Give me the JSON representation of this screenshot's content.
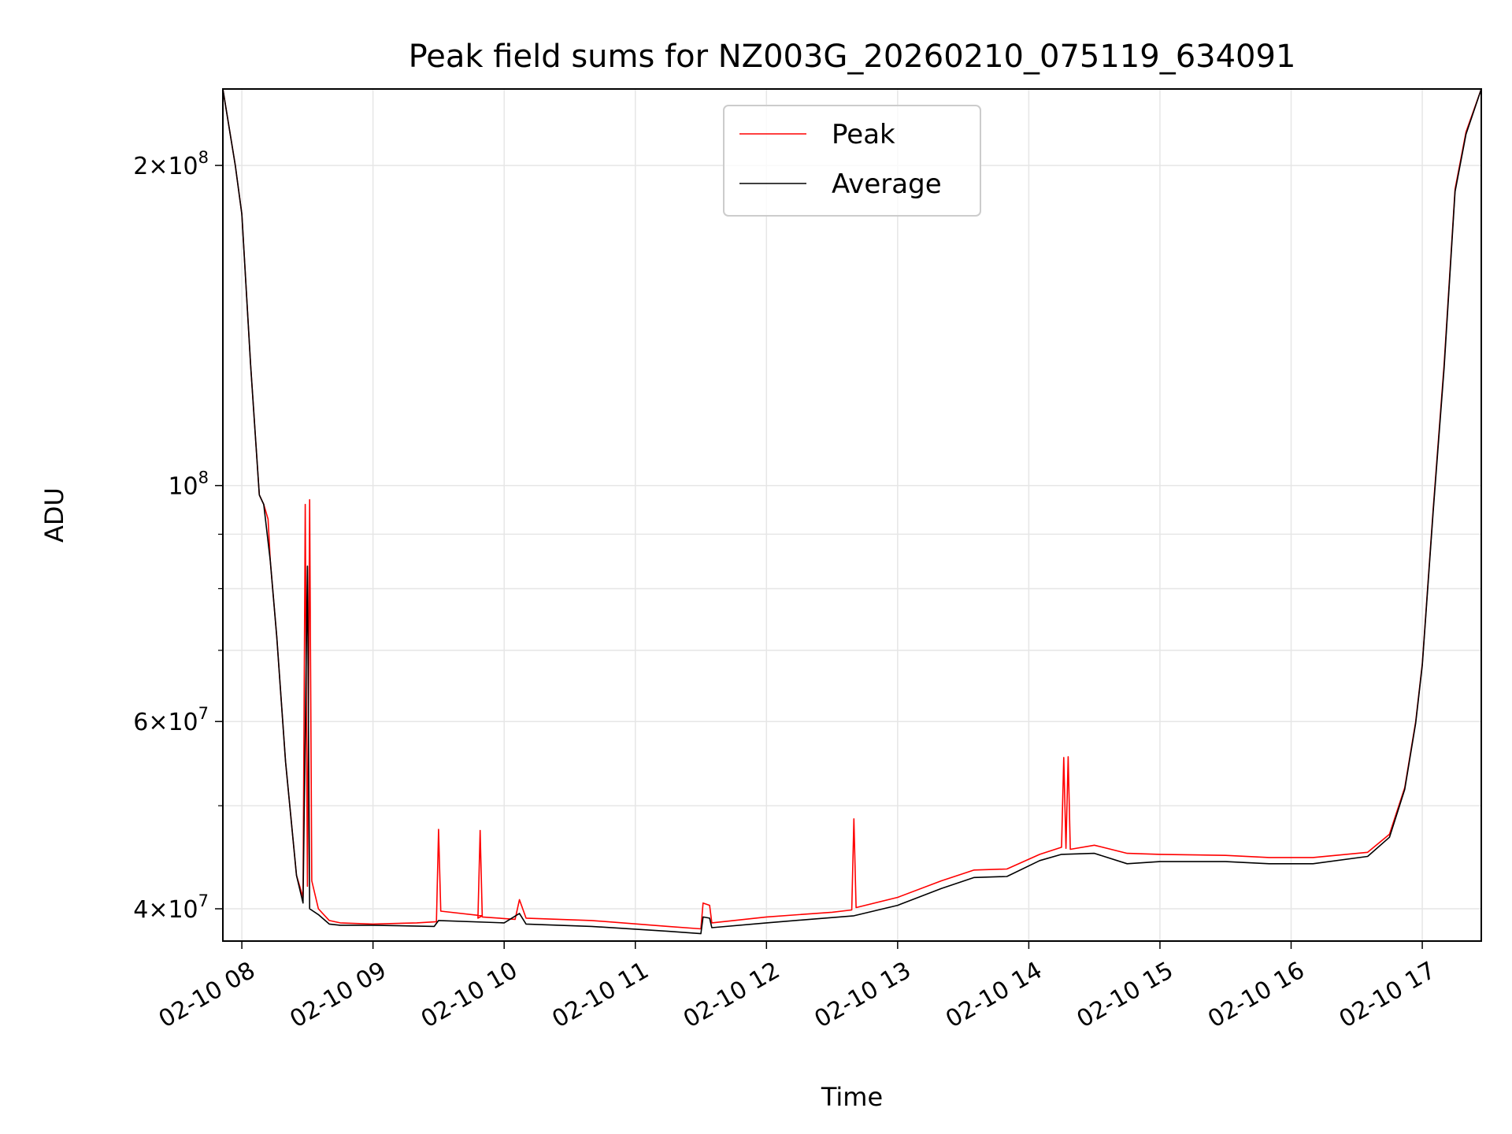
{
  "chart_data": {
    "type": "line",
    "title": "Peak field sums for NZ003G_20260210_075119_634091",
    "xlabel": "Time",
    "ylabel": "ADU",
    "y_scale": "log",
    "ylim": [
      37300000,
      236000000
    ],
    "xlim": [
      "02-10 07:51:19",
      "02-10 17:27:00"
    ],
    "grid": true,
    "legend_position": "upper center",
    "x_ticks": [
      "02-10 08",
      "02-10 09",
      "02-10 10",
      "02-10 11",
      "02-10 12",
      "02-10 13",
      "02-10 14",
      "02-10 15",
      "02-10 16",
      "02-10 17"
    ],
    "y_major_ticks": [
      {
        "value": 40000000,
        "mantissa": "4",
        "exponent": "7"
      },
      {
        "value": 60000000,
        "mantissa": "6",
        "exponent": "7"
      },
      {
        "value": 100000000,
        "mantissa": "",
        "exponent": "8"
      },
      {
        "value": 200000000,
        "mantissa": "2",
        "exponent": "8"
      }
    ],
    "y_minor_ticks": [
      50000000,
      70000000,
      80000000,
      90000000
    ],
    "series": [
      {
        "name": "Peak",
        "color": "#ff0000",
        "points": [
          [
            "02-10 07:51:19",
            236000000
          ],
          [
            "02-10 07:57",
            200000000
          ],
          [
            "02-10 08:00",
            180000000
          ],
          [
            "02-10 08:04",
            130000000
          ],
          [
            "02-10 08:08",
            98000000
          ],
          [
            "02-10 08:10",
            96000000
          ],
          [
            "02-10 08:12",
            93000000
          ],
          [
            "02-10 08:13",
            85000000
          ],
          [
            "02-10 08:16",
            72000000
          ],
          [
            "02-10 08:20",
            55000000
          ],
          [
            "02-10 08:25",
            43000000
          ],
          [
            "02-10 08:28",
            41000000
          ],
          [
            "02-10 08:29",
            96000000
          ],
          [
            "02-10 08:30",
            42000000
          ],
          [
            "02-10 08:31",
            97000000
          ],
          [
            "02-10 08:32",
            42500000
          ],
          [
            "02-10 08:35",
            40000000
          ],
          [
            "02-10 08:40",
            39000000
          ],
          [
            "02-10 08:45",
            38800000
          ],
          [
            "02-10 09:00",
            38700000
          ],
          [
            "02-10 09:20",
            38800000
          ],
          [
            "02-10 09:29",
            38900000
          ],
          [
            "02-10 09:30",
            47500000
          ],
          [
            "02-10 09:31",
            39800000
          ],
          [
            "02-10 09:50",
            39400000
          ],
          [
            "02-10 09:48",
            39200000
          ],
          [
            "02-10 09:49",
            47400000
          ],
          [
            "02-10 09:50",
            39300000
          ],
          [
            "02-10 10:05",
            39100000
          ],
          [
            "02-10 10:07",
            40800000
          ],
          [
            "02-10 10:10",
            39200000
          ],
          [
            "02-10 10:40",
            39000000
          ],
          [
            "02-10 11:15",
            38500000
          ],
          [
            "02-10 11:30",
            38300000
          ],
          [
            "02-10 11:31",
            40500000
          ],
          [
            "02-10 11:34",
            40300000
          ],
          [
            "02-10 11:35",
            38800000
          ],
          [
            "02-10 12:00",
            39300000
          ],
          [
            "02-10 12:30",
            39700000
          ],
          [
            "02-10 12:39",
            39900000
          ],
          [
            "02-10 12:40",
            48600000
          ],
          [
            "02-10 12:41",
            40100000
          ],
          [
            "02-10 13:00",
            41000000
          ],
          [
            "02-10 13:20",
            42500000
          ],
          [
            "02-10 13:35",
            43500000
          ],
          [
            "02-10 13:50",
            43600000
          ],
          [
            "02-10 14:05",
            45000000
          ],
          [
            "02-10 14:15",
            45700000
          ],
          [
            "02-10 14:16",
            55500000
          ],
          [
            "02-10 14:17",
            45600000
          ],
          [
            "02-10 14:18",
            55600000
          ],
          [
            "02-10 14:19",
            45500000
          ],
          [
            "02-10 14:30",
            45900000
          ],
          [
            "02-10 14:45",
            45100000
          ],
          [
            "02-10 15:00",
            45000000
          ],
          [
            "02-10 15:30",
            44900000
          ],
          [
            "02-10 15:50",
            44700000
          ],
          [
            "02-10 16:10",
            44700000
          ],
          [
            "02-10 16:35",
            45200000
          ],
          [
            "02-10 16:45",
            47000000
          ],
          [
            "02-10 16:52",
            52000000
          ],
          [
            "02-10 16:57",
            60000000
          ],
          [
            "02-10 17:00",
            68000000
          ],
          [
            "02-10 17:05",
            95000000
          ],
          [
            "02-10 17:10",
            130000000
          ],
          [
            "02-10 17:15",
            190000000
          ],
          [
            "02-10 17:20",
            215000000
          ],
          [
            "02-10 17:27",
            236000000
          ]
        ]
      },
      {
        "name": "Average",
        "color": "#000000",
        "points": [
          [
            "02-10 07:51:19",
            236000000
          ],
          [
            "02-10 07:57",
            200000000
          ],
          [
            "02-10 08:00",
            180000000
          ],
          [
            "02-10 08:04",
            130000000
          ],
          [
            "02-10 08:08",
            98000000
          ],
          [
            "02-10 08:10",
            96000000
          ],
          [
            "02-10 08:13",
            85000000
          ],
          [
            "02-10 08:16",
            72000000
          ],
          [
            "02-10 08:20",
            55000000
          ],
          [
            "02-10 08:25",
            43000000
          ],
          [
            "02-10 08:28",
            40500000
          ],
          [
            "02-10 08:30",
            84000000
          ],
          [
            "02-10 08:31",
            40000000
          ],
          [
            "02-10 08:35",
            39500000
          ],
          [
            "02-10 08:40",
            38700000
          ],
          [
            "02-10 08:45",
            38600000
          ],
          [
            "02-10 09:00",
            38600000
          ],
          [
            "02-10 09:28",
            38500000
          ],
          [
            "02-10 09:30",
            39000000
          ],
          [
            "02-10 10:00",
            38800000
          ],
          [
            "02-10 10:07",
            39600000
          ],
          [
            "02-10 10:10",
            38700000
          ],
          [
            "02-10 10:40",
            38500000
          ],
          [
            "02-10 11:15",
            38100000
          ],
          [
            "02-10 11:30",
            37900000
          ],
          [
            "02-10 11:31",
            39300000
          ],
          [
            "02-10 11:34",
            39200000
          ],
          [
            "02-10 11:35",
            38400000
          ],
          [
            "02-10 12:00",
            38800000
          ],
          [
            "02-10 12:40",
            39400000
          ],
          [
            "02-10 13:00",
            40300000
          ],
          [
            "02-10 13:20",
            41800000
          ],
          [
            "02-10 13:35",
            42800000
          ],
          [
            "02-10 13:50",
            42900000
          ],
          [
            "02-10 14:05",
            44400000
          ],
          [
            "02-10 14:15",
            45000000
          ],
          [
            "02-10 14:30",
            45100000
          ],
          [
            "02-10 14:45",
            44100000
          ],
          [
            "02-10 15:00",
            44300000
          ],
          [
            "02-10 15:30",
            44300000
          ],
          [
            "02-10 15:50",
            44100000
          ],
          [
            "02-10 16:10",
            44100000
          ],
          [
            "02-10 16:35",
            44800000
          ],
          [
            "02-10 16:45",
            46700000
          ],
          [
            "02-10 16:52",
            51800000
          ],
          [
            "02-10 16:57",
            59800000
          ],
          [
            "02-10 17:00",
            67800000
          ],
          [
            "02-10 17:05",
            94500000
          ],
          [
            "02-10 17:10",
            129000000
          ],
          [
            "02-10 17:15",
            189000000
          ],
          [
            "02-10 17:20",
            214000000
          ],
          [
            "02-10 17:27",
            236000000
          ]
        ]
      }
    ]
  }
}
